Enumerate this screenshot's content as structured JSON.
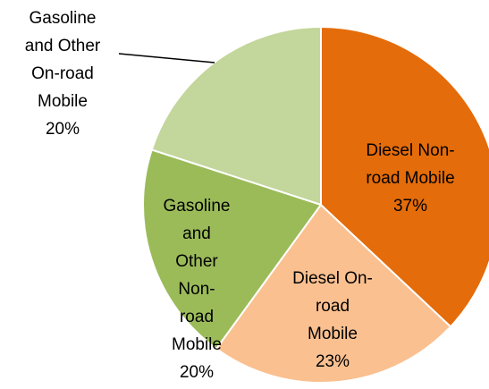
{
  "chart_data": {
    "type": "pie",
    "categories": [
      "Diesel Non-road Mobile",
      "Diesel On-road Mobile",
      "Gasoline and Other Non-road Mobile",
      "Gasoline and Other On-road Mobile"
    ],
    "values": [
      37,
      23,
      20,
      20
    ],
    "value_labels": [
      "37%",
      "23%",
      "20%",
      "20%"
    ],
    "colors": [
      "#e46c0a",
      "#fac090",
      "#9bbb59",
      "#c3d69b"
    ]
  }
}
